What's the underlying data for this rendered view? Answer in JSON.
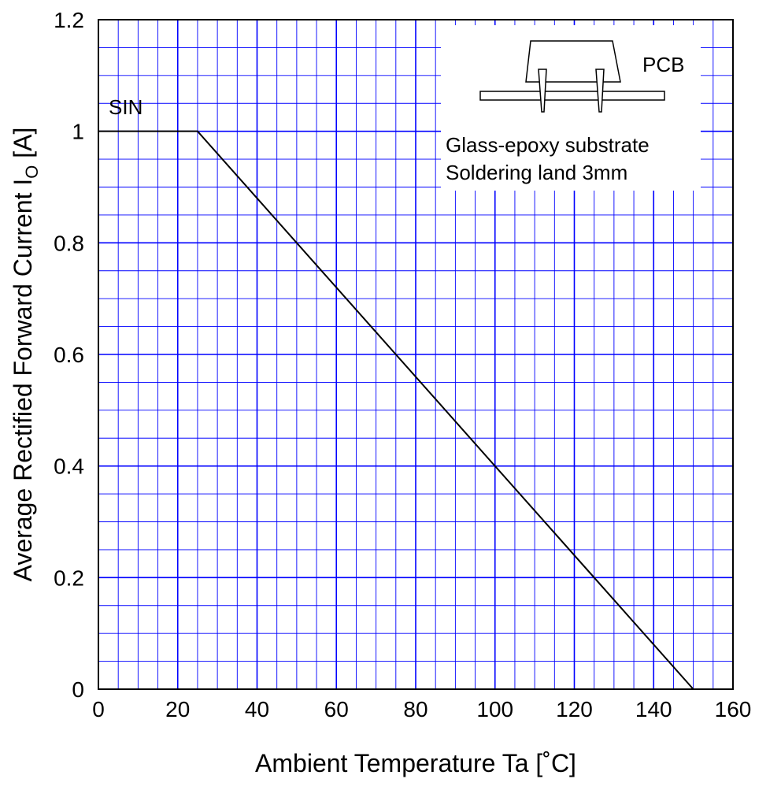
{
  "chart_data": {
    "type": "line",
    "title": "",
    "xlabel": "Ambient Temperature   Ta   [˚C]",
    "ylabel_main": "Average Rectified Forward Current   I",
    "ylabel_sub": "O",
    "ylabel_unit": "  [A]",
    "xlim": [
      0,
      160
    ],
    "ylim": [
      0,
      1.2
    ],
    "x_ticks": [
      0,
      20,
      40,
      60,
      80,
      100,
      120,
      140,
      160
    ],
    "x_tick_labels": [
      "0",
      "20",
      "40",
      "60",
      "80",
      "100",
      "120",
      "140",
      "160"
    ],
    "y_ticks": [
      0,
      0.2,
      0.4,
      0.6,
      0.8,
      1,
      1.2
    ],
    "y_tick_labels": [
      "0",
      "0.2",
      "0.4",
      "0.6",
      "0.8",
      "1",
      "1.2"
    ],
    "x_minor_step": 5,
    "y_minor_step": 0.05,
    "grid": true,
    "grid_color": "#0000ff",
    "line_color": "#000000",
    "series": [
      {
        "name": "SIN",
        "x": [
          0,
          25,
          150
        ],
        "y": [
          1,
          1,
          0
        ]
      }
    ],
    "annotations": {
      "series_label": "SIN",
      "pcb_label": "PCB",
      "substrate_line1": "Glass-epoxy  substrate",
      "substrate_line2": "Soldering  land  3mm"
    }
  }
}
